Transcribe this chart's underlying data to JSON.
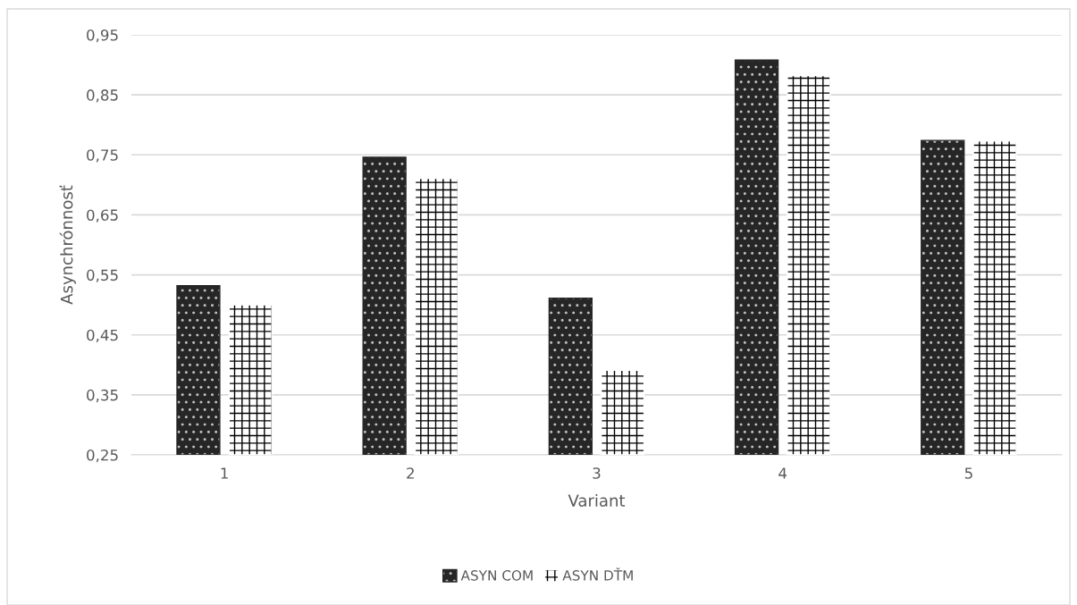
{
  "chart_data": {
    "type": "bar",
    "xlabel": "Variant",
    "ylabel": "Asynchrónnosť",
    "categories": [
      "1",
      "2",
      "3",
      "4",
      "5"
    ],
    "series": [
      {
        "name": "ASYN COM",
        "color": "#262626",
        "values": [
          0.532,
          0.746,
          0.511,
          0.908,
          0.774
        ]
      },
      {
        "name": "ASYN DŤM",
        "color": "#ffffff",
        "values": [
          0.5,
          0.711,
          0.391,
          0.882,
          0.773
        ]
      }
    ],
    "ylim": [
      0.25,
      0.95
    ],
    "yticks": [
      {
        "value": 0.25,
        "label": "0,25"
      },
      {
        "value": 0.35,
        "label": "0,35"
      },
      {
        "value": 0.45,
        "label": "0,45"
      },
      {
        "value": 0.55,
        "label": "0,55"
      },
      {
        "value": 0.65,
        "label": "0,65"
      },
      {
        "value": 0.75,
        "label": "0,75"
      },
      {
        "value": 0.85,
        "label": "0,85"
      },
      {
        "value": 0.95,
        "label": "0,95"
      }
    ],
    "grid": "y",
    "legend": "bottom"
  }
}
